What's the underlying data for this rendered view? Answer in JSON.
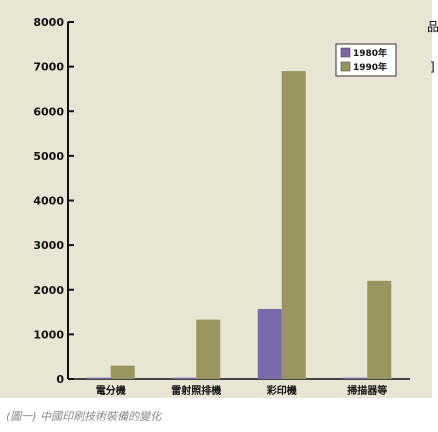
{
  "chart_data": {
    "type": "bar",
    "title": "",
    "xlabel": "",
    "ylabel": "",
    "categories": [
      "電分機",
      "雷射照排機",
      "彩印機",
      "掃描器等"
    ],
    "series": [
      {
        "name": "1980年",
        "values": [
          30,
          30,
          1570,
          30
        ],
        "color": "#7a68a8"
      },
      {
        "name": "1990年",
        "values": [
          300,
          1330,
          6900,
          2200
        ],
        "color": "#9a9460"
      }
    ],
    "ylim": [
      0,
      8000
    ],
    "yticks": [
      "0",
      "1000",
      "2000",
      "3000",
      "4000",
      "5000",
      "6000",
      "7000",
      "8000"
    ],
    "legend_position": "top-right",
    "grid": false
  },
  "caption": "(圖一) 中國印刷技術裝備的變化",
  "edge_fragments": [
    "品",
    "]"
  ]
}
